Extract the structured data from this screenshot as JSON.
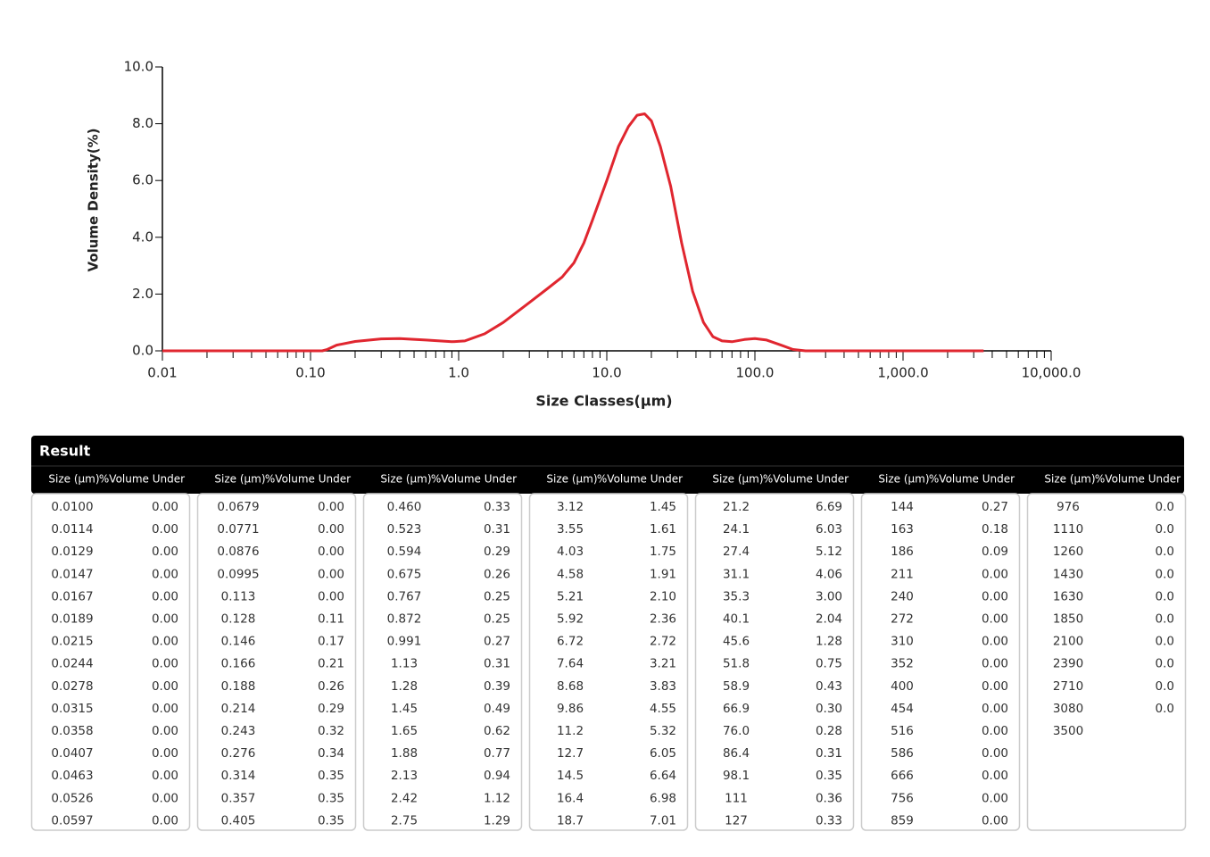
{
  "chart_data": {
    "type": "line",
    "xlabel": "Size Classes(μm)",
    "ylabel": "Volume Density(%)",
    "xscale": "log",
    "xlim": [
      0.01,
      10000
    ],
    "ylim": [
      0,
      10
    ],
    "xticks": [
      0.01,
      {
        "value": 0.1,
        "label": "0.10"
      },
      {
        "value": 1,
        "label": "1.0"
      },
      {
        "value": 10,
        "label": "10.0"
      },
      {
        "value": 100,
        "label": "100.0"
      },
      {
        "value": 1000,
        "label": "1,000.0"
      },
      {
        "value": 10000,
        "label": "10,000.0"
      }
    ],
    "xminorticks": [
      0.02,
      0.03,
      0.04,
      0.05,
      0.06,
      0.07,
      0.08,
      0.09,
      0.2,
      0.3,
      0.4,
      0.5,
      0.6,
      0.7,
      0.8,
      0.9,
      2,
      3,
      4,
      5,
      6,
      7,
      8,
      9,
      20,
      30,
      40,
      50,
      60,
      70,
      80,
      90,
      200,
      300,
      400,
      500,
      600,
      700,
      800,
      900,
      2000,
      3000,
      4000,
      5000,
      6000,
      7000,
      8000,
      9000
    ],
    "yticks": [
      {
        "value": 0,
        "label": "0.0"
      },
      {
        "value": 2,
        "label": "2.0"
      },
      {
        "value": 4,
        "label": "4.0"
      },
      {
        "value": 6,
        "label": "6.0"
      },
      {
        "value": 8,
        "label": "8.0"
      },
      {
        "value": 10,
        "label": "10.0"
      }
    ],
    "x": [
      0.01,
      0.12,
      0.13,
      0.15,
      0.2,
      0.3,
      0.4,
      0.6,
      0.9,
      1.1,
      1.5,
      2,
      3,
      4,
      5,
      6,
      7,
      8,
      10,
      12,
      14,
      16,
      18,
      20,
      23,
      27,
      32,
      38,
      45,
      52,
      60,
      70,
      85,
      100,
      120,
      150,
      180,
      220,
      3500
    ],
    "series": [
      {
        "color": "#e0262f",
        "values": [
          0,
          0,
          0.05,
          0.2,
          0.33,
          0.42,
          0.43,
          0.38,
          0.32,
          0.35,
          0.6,
          1.0,
          1.7,
          2.2,
          2.6,
          3.1,
          3.8,
          4.6,
          6.0,
          7.2,
          7.9,
          8.3,
          8.35,
          8.1,
          7.2,
          5.8,
          3.8,
          2.1,
          1.0,
          0.5,
          0.35,
          0.32,
          0.4,
          0.43,
          0.38,
          0.2,
          0.05,
          0,
          0
        ]
      }
    ]
  },
  "table": {
    "title": "Result",
    "groups": [
      {
        "headers": [
          "Size (μm)",
          "%Volume Under"
        ],
        "rows": [
          [
            "0.0100",
            "0.00"
          ],
          [
            "0.0114",
            "0.00"
          ],
          [
            "0.0129",
            "0.00"
          ],
          [
            "0.0147",
            "0.00"
          ],
          [
            "0.0167",
            "0.00"
          ],
          [
            "0.0189",
            "0.00"
          ],
          [
            "0.0215",
            "0.00"
          ],
          [
            "0.0244",
            "0.00"
          ],
          [
            "0.0278",
            "0.00"
          ],
          [
            "0.0315",
            "0.00"
          ],
          [
            "0.0358",
            "0.00"
          ],
          [
            "0.0407",
            "0.00"
          ],
          [
            "0.0463",
            "0.00"
          ],
          [
            "0.0526",
            "0.00"
          ],
          [
            "0.0597",
            "0.00"
          ]
        ]
      },
      {
        "headers": [
          "Size (μm)",
          "%Volume Under"
        ],
        "rows": [
          [
            "0.0679",
            "0.00"
          ],
          [
            "0.0771",
            "0.00"
          ],
          [
            "0.0876",
            "0.00"
          ],
          [
            "0.0995",
            "0.00"
          ],
          [
            "0.113",
            "0.00"
          ],
          [
            "0.128",
            "0.11"
          ],
          [
            "0.146",
            "0.17"
          ],
          [
            "0.166",
            "0.21"
          ],
          [
            "0.188",
            "0.26"
          ],
          [
            "0.214",
            "0.29"
          ],
          [
            "0.243",
            "0.32"
          ],
          [
            "0.276",
            "0.34"
          ],
          [
            "0.314",
            "0.35"
          ],
          [
            "0.357",
            "0.35"
          ],
          [
            "0.405",
            "0.35"
          ]
        ]
      },
      {
        "headers": [
          "Size (μm)",
          "%Volume Under"
        ],
        "rows": [
          [
            "0.460",
            "0.33"
          ],
          [
            "0.523",
            "0.31"
          ],
          [
            "0.594",
            "0.29"
          ],
          [
            "0.675",
            "0.26"
          ],
          [
            "0.767",
            "0.25"
          ],
          [
            "0.872",
            "0.25"
          ],
          [
            "0.991",
            "0.27"
          ],
          [
            "1.13",
            "0.31"
          ],
          [
            "1.28",
            "0.39"
          ],
          [
            "1.45",
            "0.49"
          ],
          [
            "1.65",
            "0.62"
          ],
          [
            "1.88",
            "0.77"
          ],
          [
            "2.13",
            "0.94"
          ],
          [
            "2.42",
            "1.12"
          ],
          [
            "2.75",
            "1.29"
          ]
        ]
      },
      {
        "headers": [
          "Size (μm)",
          "%Volume Under"
        ],
        "rows": [
          [
            "3.12",
            "1.45"
          ],
          [
            "3.55",
            "1.61"
          ],
          [
            "4.03",
            "1.75"
          ],
          [
            "4.58",
            "1.91"
          ],
          [
            "5.21",
            "2.10"
          ],
          [
            "5.92",
            "2.36"
          ],
          [
            "6.72",
            "2.72"
          ],
          [
            "7.64",
            "3.21"
          ],
          [
            "8.68",
            "3.83"
          ],
          [
            "9.86",
            "4.55"
          ],
          [
            "11.2",
            "5.32"
          ],
          [
            "12.7",
            "6.05"
          ],
          [
            "14.5",
            "6.64"
          ],
          [
            "16.4",
            "6.98"
          ],
          [
            "18.7",
            "7.01"
          ]
        ]
      },
      {
        "headers": [
          "Size (μm)",
          "%Volume Under"
        ],
        "rows": [
          [
            "21.2",
            "6.69"
          ],
          [
            "24.1",
            "6.03"
          ],
          [
            "27.4",
            "5.12"
          ],
          [
            "31.1",
            "4.06"
          ],
          [
            "35.3",
            "3.00"
          ],
          [
            "40.1",
            "2.04"
          ],
          [
            "45.6",
            "1.28"
          ],
          [
            "51.8",
            "0.75"
          ],
          [
            "58.9",
            "0.43"
          ],
          [
            "66.9",
            "0.30"
          ],
          [
            "76.0",
            "0.28"
          ],
          [
            "86.4",
            "0.31"
          ],
          [
            "98.1",
            "0.35"
          ],
          [
            "111",
            "0.36"
          ],
          [
            "127",
            "0.33"
          ]
        ]
      },
      {
        "headers": [
          "Size (μm)",
          "%Volume Under"
        ],
        "rows": [
          [
            "144",
            "0.27"
          ],
          [
            "163",
            "0.18"
          ],
          [
            "186",
            "0.09"
          ],
          [
            "211",
            "0.00"
          ],
          [
            "240",
            "0.00"
          ],
          [
            "272",
            "0.00"
          ],
          [
            "310",
            "0.00"
          ],
          [
            "352",
            "0.00"
          ],
          [
            "400",
            "0.00"
          ],
          [
            "454",
            "0.00"
          ],
          [
            "516",
            "0.00"
          ],
          [
            "586",
            "0.00"
          ],
          [
            "666",
            "0.00"
          ],
          [
            "756",
            "0.00"
          ],
          [
            "859",
            "0.00"
          ]
        ]
      },
      {
        "headers": [
          "Size (μm)",
          "%Volume Under"
        ],
        "rows": [
          [
            "976",
            "0.0"
          ],
          [
            "1110",
            "0.0"
          ],
          [
            "1260",
            "0.0"
          ],
          [
            "1430",
            "0.0"
          ],
          [
            "1630",
            "0.0"
          ],
          [
            "1850",
            "0.0"
          ],
          [
            "2100",
            "0.0"
          ],
          [
            "2390",
            "0.0"
          ],
          [
            "2710",
            "0.0"
          ],
          [
            "3080",
            "0.0"
          ],
          [
            "3500",
            null
          ]
        ]
      }
    ]
  }
}
